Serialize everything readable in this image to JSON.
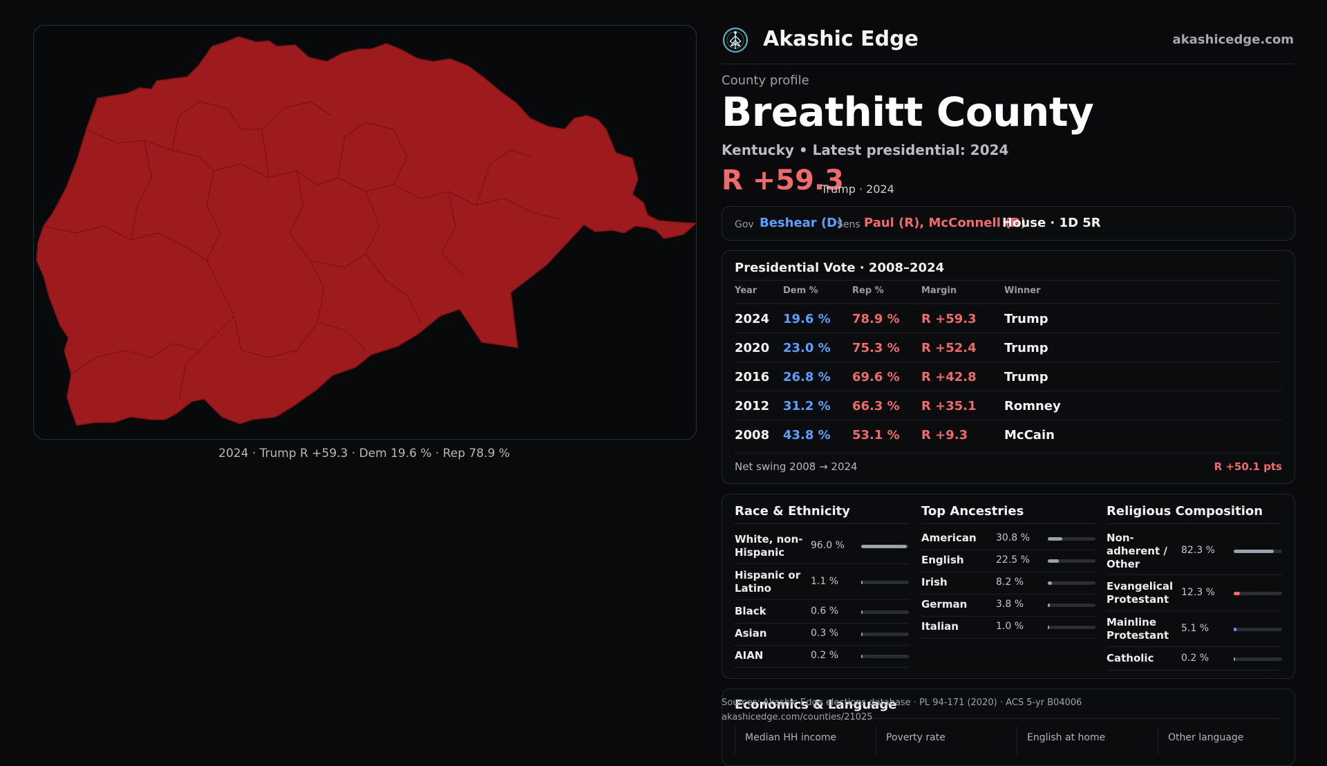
{
  "map": {
    "caption": "2024 · Trump R +59.3 · Dem 19.6 % · Rep 78.9 %",
    "fill_color": "#9d1a1d"
  },
  "header": {
    "brand": "Akashic Edge",
    "site": "akashicedge.com",
    "logo_icon": "tree-of-life-icon"
  },
  "profile": {
    "eyebrow": "County profile",
    "title": "Breathitt County",
    "subtitle": "Kentucky • Latest presidential: 2024",
    "margin": "R +59.3",
    "margin_note": "Trump · 2024"
  },
  "officials": {
    "gov_label": "Gov",
    "gov_value": "Beshear (D)",
    "sens_label": "Sens",
    "sens_value": "Paul (R), McConnell (R)",
    "house_value": "House · 1D 5R"
  },
  "presidential": {
    "title": "Presidential Vote · 2008–2024",
    "headers": [
      "Year",
      "Dem %",
      "Rep %",
      "Margin",
      "Winner"
    ],
    "rows": [
      {
        "year": "2024",
        "dem": "19.6 %",
        "rep": "78.9 %",
        "margin": "R +59.3",
        "winner": "Trump"
      },
      {
        "year": "2020",
        "dem": "23.0 %",
        "rep": "75.3 %",
        "margin": "R +52.4",
        "winner": "Trump"
      },
      {
        "year": "2016",
        "dem": "26.8 %",
        "rep": "69.6 %",
        "margin": "R +42.8",
        "winner": "Trump"
      },
      {
        "year": "2012",
        "dem": "31.2 %",
        "rep": "66.3 %",
        "margin": "R +35.1",
        "winner": "Romney"
      },
      {
        "year": "2008",
        "dem": "43.8 %",
        "rep": "53.1 %",
        "margin": "R +9.3",
        "winner": "McCain"
      }
    ],
    "swing_label": "Net swing 2008 → 2024",
    "swing_value": "R +50.1 pts"
  },
  "race": {
    "title": "Race & Ethnicity",
    "items": [
      {
        "name": "White, non-Hispanic",
        "pct": "96.0 %",
        "value": 96.0
      },
      {
        "name": "Hispanic or Latino",
        "pct": "1.1 %",
        "value": 1.1
      },
      {
        "name": "Black",
        "pct": "0.6 %",
        "value": 0.6
      },
      {
        "name": "Asian",
        "pct": "0.3 %",
        "value": 0.3
      },
      {
        "name": "AIAN",
        "pct": "0.2 %",
        "value": 0.2
      }
    ]
  },
  "ancestry": {
    "title": "Top Ancestries",
    "items": [
      {
        "name": "American",
        "pct": "30.8 %",
        "value": 30.8
      },
      {
        "name": "English",
        "pct": "22.5 %",
        "value": 22.5
      },
      {
        "name": "Irish",
        "pct": "8.2 %",
        "value": 8.2
      },
      {
        "name": "German",
        "pct": "3.8 %",
        "value": 3.8
      },
      {
        "name": "Italian",
        "pct": "1.0 %",
        "value": 1.0
      }
    ]
  },
  "religion": {
    "title": "Religious Composition",
    "items": [
      {
        "name": "Non-adherent / Other",
        "pct": "82.3 %",
        "value": 82.3,
        "color": "#9ca0aa"
      },
      {
        "name": "Evangelical Protestant",
        "pct": "12.3 %",
        "value": 12.3,
        "color": "#ef6b6b"
      },
      {
        "name": "Mainline Protestant",
        "pct": "5.1 %",
        "value": 5.1,
        "color": "#5aa0ff"
      },
      {
        "name": "Catholic",
        "pct": "0.2 %",
        "value": 0.2,
        "color": "#9ca0aa"
      }
    ]
  },
  "economics": {
    "title": "Economics & Language",
    "headers": [
      "Median HH income",
      "Poverty rate",
      "English at home",
      "Other language"
    ]
  },
  "sources": {
    "line1": "Sources: Akashic Edge elections database · PL 94-171 (2020) · ACS 5-yr B04006",
    "line2": "akashicedge.com/counties/21025"
  },
  "colors": {
    "dem": "#5aa0ff",
    "rep": "#ef6b6b",
    "accent": "#4fb3c2"
  }
}
